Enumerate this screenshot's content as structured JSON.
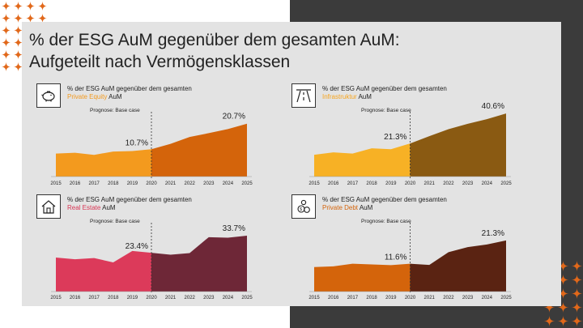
{
  "title_line1": "% der ESG AuM gegenüber dem gesamten AuM:",
  "title_line2": "Aufgeteilt nach Vermögensklassen",
  "colors": {
    "dark_bg": "#3b3b3b",
    "card_bg": "#e3e3e3",
    "accent": "#e1681a"
  },
  "prognose": "Prognose: Base case",
  "years": [
    "2015",
    "2016",
    "2017",
    "2018",
    "2019",
    "2020",
    "2021",
    "2022",
    "2023",
    "2024",
    "2025"
  ],
  "panels": [
    {
      "id": "private-equity",
      "icon": "piggy-bank-icon",
      "title_prefix": "% der ESG AuM gegenüber dem gesamten",
      "asset_class": "Private Equity",
      "suffix": "AuM",
      "color_hist": "#f39a1e",
      "color_fore": "#d4640b",
      "class_color": "#f39a1e",
      "label_hist": "10.7%",
      "label_fore": "20.7%"
    },
    {
      "id": "infrastruktur",
      "icon": "road-icon",
      "title_prefix": "% der ESG AuM gegenüber dem gesamten",
      "asset_class": "Infrastruktur",
      "suffix": "AuM",
      "color_hist": "#f7b125",
      "color_fore": "#8a5a12",
      "class_color": "#f7a51e",
      "label_hist": "21.3%",
      "label_fore": "40.6%"
    },
    {
      "id": "real-estate",
      "icon": "house-icon",
      "title_prefix": "% der ESG AuM gegenüber dem gesamten",
      "asset_class": "Real Estate",
      "suffix": "AuM",
      "color_hist": "#dc3a5a",
      "color_fore": "#6e2737",
      "class_color": "#d93654",
      "label_hist": "23.4%",
      "label_fore": "33.7%"
    },
    {
      "id": "private-debt",
      "icon": "money-icon",
      "title_prefix": "% der ESG AuM gegenüber dem gesamten",
      "asset_class": "Private Debt",
      "suffix": "AuM",
      "color_hist": "#d4640b",
      "color_fore": "#5a2312",
      "class_color": "#d4640b",
      "label_hist": "11.6%",
      "label_fore": "21.3%"
    }
  ],
  "chart_data": [
    {
      "type": "area",
      "title": "% der ESG AuM gegenüber dem gesamten Private Equity AuM",
      "x": [
        "2015",
        "2016",
        "2017",
        "2018",
        "2019",
        "2020",
        "2021",
        "2022",
        "2023",
        "2024",
        "2025"
      ],
      "series": [
        {
          "values": [
            9.0,
            9.3,
            8.5,
            9.8,
            10.0,
            10.7,
            12.8,
            15.5,
            17.0,
            18.6,
            20.7
          ]
        }
      ],
      "ylim": [
        0,
        26
      ],
      "forecast_from": "2020",
      "data_labels": {
        "2020": "10.7%",
        "2025": "20.7%"
      }
    },
    {
      "type": "area",
      "title": "% der ESG AuM gegenüber dem gesamten Infrastruktur AuM",
      "x": [
        "2015",
        "2016",
        "2017",
        "2018",
        "2019",
        "2020",
        "2021",
        "2022",
        "2023",
        "2024",
        "2025"
      ],
      "series": [
        {
          "values": [
            14.0,
            15.6,
            14.8,
            18.2,
            17.6,
            21.3,
            26.0,
            30.5,
            34.0,
            37.0,
            40.6
          ]
        }
      ],
      "ylim": [
        0,
        48
      ],
      "forecast_from": "2020",
      "data_labels": {
        "2020": "21.3%",
        "2025": "40.6%"
      }
    },
    {
      "type": "area",
      "title": "% der ESG AuM gegenüber dem gesamten Real Estate AuM",
      "x": [
        "2015",
        "2016",
        "2017",
        "2018",
        "2019",
        "2020",
        "2021",
        "2022",
        "2023",
        "2024",
        "2025"
      ],
      "series": [
        {
          "values": [
            20.5,
            19.5,
            20.2,
            17.6,
            24.5,
            23.4,
            22.2,
            23.2,
            32.8,
            32.5,
            33.7
          ]
        }
      ],
      "ylim": [
        0,
        42
      ],
      "forecast_from": "2020",
      "data_labels": {
        "2020": "23.4%",
        "2025": "33.7%"
      }
    },
    {
      "type": "area",
      "title": "% der ESG AuM gegenüber dem gesamten Private Debt AuM",
      "x": [
        "2015",
        "2016",
        "2017",
        "2018",
        "2019",
        "2020",
        "2021",
        "2022",
        "2023",
        "2024",
        "2025"
      ],
      "series": [
        {
          "values": [
            10.2,
            10.5,
            11.6,
            11.3,
            11.0,
            11.6,
            11.1,
            16.4,
            18.5,
            19.6,
            21.3
          ]
        }
      ],
      "ylim": [
        0,
        27
      ],
      "forecast_from": "2020",
      "data_labels": {
        "2020": "11.6%",
        "2025": "21.3%"
      }
    }
  ]
}
